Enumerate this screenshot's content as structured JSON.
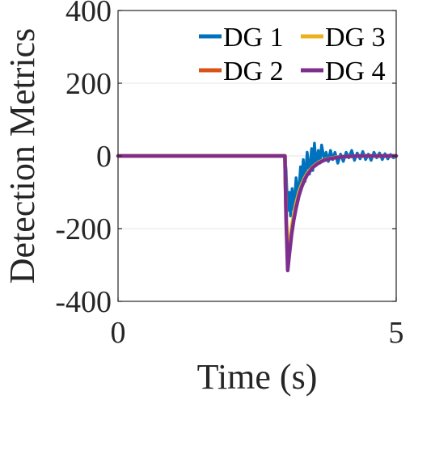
{
  "chart_data": {
    "type": "line",
    "title": "",
    "xlabel": "Time (s)",
    "ylabel": "Detection Metrics",
    "xlim": [
      0,
      5
    ],
    "ylim": [
      -400,
      400
    ],
    "xticks": [
      {
        "value": 0,
        "label": "0"
      },
      {
        "value": 5,
        "label": "5"
      }
    ],
    "yticks": [
      {
        "value": 400,
        "label": "400"
      },
      {
        "value": 200,
        "label": "200"
      },
      {
        "value": 0,
        "label": "0"
      },
      {
        "value": -200,
        "label": "-200"
      },
      {
        "value": -400,
        "label": "-400"
      }
    ],
    "grid": true,
    "legend_position": "top-right",
    "series": [
      {
        "name": "DG 1",
        "color": "#0072BD",
        "x": [
          0,
          3.0,
          3.02,
          3.05,
          3.08,
          3.1,
          3.13,
          3.16,
          3.2,
          3.24,
          3.28,
          3.3,
          3.33,
          3.36,
          3.4,
          3.44,
          3.48,
          3.5,
          3.53,
          3.56,
          3.6,
          3.63,
          3.66,
          3.7,
          3.74,
          3.78,
          3.82,
          3.86,
          3.9,
          3.95,
          4.0,
          4.05,
          4.1,
          4.15,
          4.2,
          4.25,
          4.3,
          4.35,
          4.4,
          4.45,
          4.5,
          4.55,
          4.6,
          4.65,
          4.7,
          4.75,
          4.8,
          4.85,
          4.9,
          4.95,
          5.0
        ],
        "y": [
          0,
          0,
          -40,
          -150,
          -100,
          -165,
          -90,
          -150,
          -60,
          -120,
          -30,
          -80,
          -10,
          -70,
          10,
          -50,
          20,
          -40,
          35,
          -25,
          15,
          -20,
          30,
          -5,
          10,
          -15,
          15,
          -10,
          10,
          -20,
          5,
          -15,
          10,
          -5,
          15,
          -12,
          8,
          -8,
          12,
          -10,
          5,
          -12,
          10,
          -5,
          8,
          -10,
          6,
          -8,
          4,
          -5,
          0
        ]
      },
      {
        "name": "DG 2",
        "color": "#D95319",
        "x": [
          0,
          3.0,
          3.02,
          3.05,
          3.08,
          3.12,
          3.16,
          3.2,
          3.25,
          3.3,
          3.35,
          3.4,
          3.5,
          3.6,
          3.7,
          3.8,
          3.9,
          4.0,
          4.2,
          4.4,
          4.6,
          4.8,
          5.0
        ],
        "y": [
          0,
          0,
          -160,
          -290,
          -250,
          -200,
          -165,
          -135,
          -105,
          -82,
          -64,
          -50,
          -31,
          -19,
          -12,
          -7,
          -4,
          -3,
          -1,
          0,
          0,
          0,
          0
        ]
      },
      {
        "name": "DG 3",
        "color": "#EDB120",
        "x": [
          0,
          3.0,
          3.02,
          3.05,
          3.08,
          3.12,
          3.16,
          3.2,
          3.25,
          3.3,
          3.35,
          3.4,
          3.5,
          3.6,
          3.7,
          3.8,
          3.9,
          4.0,
          4.2,
          4.4,
          4.6,
          4.8,
          5.0
        ],
        "y": [
          0,
          0,
          -150,
          -280,
          -245,
          -195,
          -160,
          -130,
          -100,
          -79,
          -62,
          -48,
          -30,
          -18,
          -11,
          -7,
          -4,
          -3,
          -1,
          0,
          0,
          0,
          0
        ]
      },
      {
        "name": "DG 4",
        "color": "#7E2F8E",
        "x": [
          0,
          3.0,
          3.02,
          3.05,
          3.08,
          3.12,
          3.16,
          3.2,
          3.25,
          3.3,
          3.35,
          3.4,
          3.5,
          3.6,
          3.7,
          3.8,
          3.9,
          4.0,
          4.2,
          4.4,
          4.6,
          4.8,
          5.0
        ],
        "y": [
          0,
          0,
          -170,
          -315,
          -270,
          -215,
          -175,
          -143,
          -110,
          -86,
          -67,
          -52,
          -32,
          -20,
          -12,
          -8,
          -5,
          -3,
          -1,
          0,
          0,
          0,
          0
        ]
      }
    ]
  }
}
